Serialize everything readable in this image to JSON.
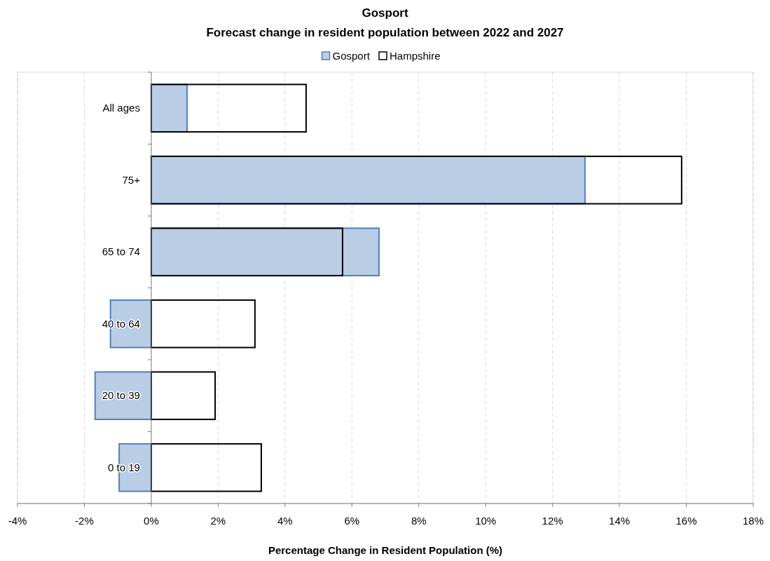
{
  "chart_data": {
    "type": "bar",
    "orientation": "horizontal",
    "title": "Gosport",
    "subtitle": "Forecast change in resident population between 2022 and 2027",
    "xlabel": "Percentage Change in Resident Population (%)",
    "categories": [
      "All ages",
      "75+",
      "65 to 74",
      "40 to 64",
      "20 to 39",
      "0 to 19"
    ],
    "series": [
      {
        "name": "Gosport",
        "color": "#b9cde5",
        "values": [
          1.07,
          12.97,
          6.81,
          -1.22,
          -1.68,
          -0.96
        ]
      },
      {
        "name": "Hampshire",
        "color": "#000000",
        "values": [
          4.63,
          15.86,
          5.72,
          3.1,
          1.91,
          3.29
        ]
      }
    ],
    "xlim": [
      -4,
      18
    ],
    "xticks": [
      {
        "value": -4,
        "label": "-4%"
      },
      {
        "value": -2,
        "label": "-2%"
      },
      {
        "value": 0,
        "label": "0%"
      },
      {
        "value": 2,
        "label": "2%"
      },
      {
        "value": 4,
        "label": "4%"
      },
      {
        "value": 6,
        "label": "6%"
      },
      {
        "value": 8,
        "label": "8%"
      },
      {
        "value": 10,
        "label": "10%"
      },
      {
        "value": 12,
        "label": "12%"
      },
      {
        "value": 14,
        "label": "14%"
      },
      {
        "value": 16,
        "label": "16%"
      },
      {
        "value": 18,
        "label": "18%"
      }
    ],
    "grid": "x",
    "legend": "top"
  }
}
